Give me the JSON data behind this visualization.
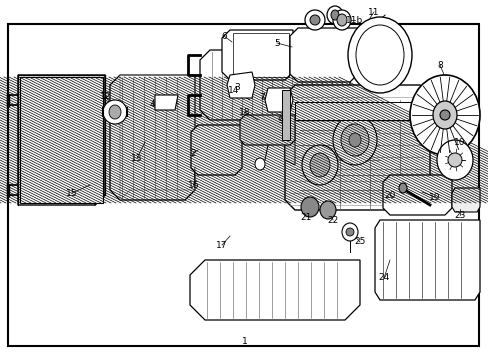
{
  "figsize": [
    4.89,
    3.6
  ],
  "dpi": 100,
  "background_color": "#ffffff",
  "border_color": "#000000",
  "footer": "1"
}
